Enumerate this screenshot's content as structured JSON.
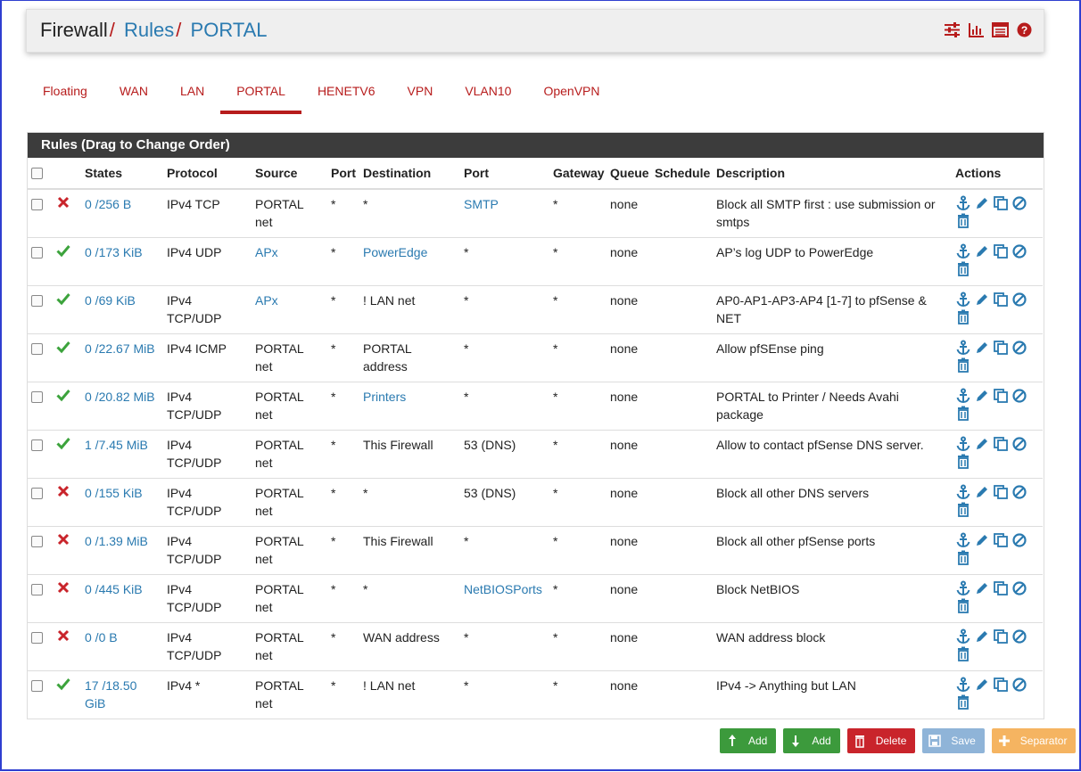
{
  "breadcrumb": {
    "root": "Firewall",
    "sep": "/",
    "rules": "Rules",
    "current": "PORTAL"
  },
  "header_icons": [
    "sliders-icon",
    "bar-chart-icon",
    "list-icon",
    "help-icon"
  ],
  "tabs": [
    "Floating",
    "WAN",
    "LAN",
    "PORTAL",
    "HENETV6",
    "VPN",
    "VLAN10",
    "OpenVPN"
  ],
  "active_tab": "PORTAL",
  "panel_title": "Rules (Drag to Change Order)",
  "columns": {
    "states": "States",
    "protocol": "Protocol",
    "source": "Source",
    "port": "Port",
    "destination": "Destination",
    "dport": "Port",
    "gateway": "Gateway",
    "queue": "Queue",
    "schedule": "Schedule",
    "description": "Description",
    "actions": "Actions"
  },
  "rules": [
    {
      "action": "block",
      "states": "0 /256 B",
      "protocol": "IPv4 TCP",
      "source": "PORTAL net",
      "source_link": false,
      "port": "*",
      "destination": "*",
      "dest_link": false,
      "dport": "SMTP",
      "dport_link": true,
      "gateway": "*",
      "queue": "none",
      "schedule": "",
      "description": "Block all SMTP first : use submission or smtps"
    },
    {
      "action": "pass",
      "states": "0 /173 KiB",
      "protocol": "IPv4 UDP",
      "source": "APx",
      "source_link": true,
      "port": "*",
      "destination": "PowerEdge",
      "dest_link": true,
      "dport": "*",
      "dport_link": false,
      "gateway": "*",
      "queue": "none",
      "schedule": "",
      "description": "AP’s log UDP to PowerEdge"
    },
    {
      "action": "pass",
      "states": "0 /69 KiB",
      "protocol": "IPv4 TCP/UDP",
      "source": "APx",
      "source_link": true,
      "port": "*",
      "destination": "! LAN net",
      "dest_link": false,
      "dport": "*",
      "dport_link": false,
      "gateway": "*",
      "queue": "none",
      "schedule": "",
      "description": "AP0-AP1-AP3-AP4 [1-7] to pfSense & NET"
    },
    {
      "action": "pass",
      "states": "0 /22.67 MiB",
      "protocol": "IPv4 ICMP",
      "source": "PORTAL net",
      "source_link": false,
      "port": "*",
      "destination": "PORTAL address",
      "dest_link": false,
      "dport": "*",
      "dport_link": false,
      "gateway": "*",
      "queue": "none",
      "schedule": "",
      "description": "Allow pfSEnse ping"
    },
    {
      "action": "pass",
      "states": "0 /20.82 MiB",
      "protocol": "IPv4 TCP/UDP",
      "source": "PORTAL net",
      "source_link": false,
      "port": "*",
      "destination": "Printers",
      "dest_link": true,
      "dport": "*",
      "dport_link": false,
      "gateway": "*",
      "queue": "none",
      "schedule": "",
      "description": "PORTAL to Printer / Needs Avahi package"
    },
    {
      "action": "pass",
      "states": "1 /7.45 MiB",
      "protocol": "IPv4 TCP/UDP",
      "source": "PORTAL net",
      "source_link": false,
      "port": "*",
      "destination": "This Firewall",
      "dest_link": false,
      "dport": "53 (DNS)",
      "dport_link": false,
      "gateway": "*",
      "queue": "none",
      "schedule": "",
      "description": "Allow to contact pfSense DNS server."
    },
    {
      "action": "block",
      "states": "0 /155 KiB",
      "protocol": "IPv4 TCP/UDP",
      "source": "PORTAL net",
      "source_link": false,
      "port": "*",
      "destination": "*",
      "dest_link": false,
      "dport": "53 (DNS)",
      "dport_link": false,
      "gateway": "*",
      "queue": "none",
      "schedule": "",
      "description": "Block all other DNS servers"
    },
    {
      "action": "block",
      "states": "0 /1.39 MiB",
      "protocol": "IPv4 TCP/UDP",
      "source": "PORTAL net",
      "source_link": false,
      "port": "*",
      "destination": "This Firewall",
      "dest_link": false,
      "dport": "*",
      "dport_link": false,
      "gateway": "*",
      "queue": "none",
      "schedule": "",
      "description": "Block all other pfSense ports"
    },
    {
      "action": "block",
      "states": "0 /445 KiB",
      "protocol": "IPv4 TCP/UDP",
      "source": "PORTAL net",
      "source_link": false,
      "port": "*",
      "destination": "*",
      "dest_link": false,
      "dport": "NetBIOSPorts",
      "dport_link": true,
      "gateway": "*",
      "queue": "none",
      "schedule": "",
      "description": "Block NetBIOS"
    },
    {
      "action": "block",
      "states": "0 /0 B",
      "protocol": "IPv4 TCP/UDP",
      "source": "PORTAL net",
      "source_link": false,
      "port": "*",
      "destination": "WAN address",
      "dest_link": false,
      "dport": "*",
      "dport_link": false,
      "gateway": "*",
      "queue": "none",
      "schedule": "",
      "description": "WAN address block"
    },
    {
      "action": "pass",
      "states": "17 /18.50 GiB",
      "protocol": "IPv4 *",
      "source": "PORTAL net",
      "source_link": false,
      "port": "*",
      "destination": "! LAN net",
      "dest_link": false,
      "dport": "*",
      "dport_link": false,
      "gateway": "*",
      "queue": "none",
      "schedule": "",
      "description": "IPv4 -> Anything but LAN"
    }
  ],
  "row_action_icons": [
    "anchor-icon",
    "edit-icon",
    "copy-icon",
    "disable-icon",
    "trash-icon"
  ],
  "buttons": [
    {
      "label": "Add",
      "icon": "arrow-up-icon",
      "color": "green"
    },
    {
      "label": "Add",
      "icon": "arrow-down-icon",
      "color": "green"
    },
    {
      "label": "Delete",
      "icon": "trash-icon",
      "color": "red"
    },
    {
      "label": "Save",
      "icon": "save-icon",
      "color": "blue"
    },
    {
      "label": "Separator",
      "icon": "plus-icon",
      "color": "orange"
    }
  ],
  "colors": {
    "link": "#2a7ab0",
    "tab": "#b71c1c",
    "pass": "#3ca33c",
    "block": "#c9242b",
    "panel_header": "#3c3c3c"
  }
}
